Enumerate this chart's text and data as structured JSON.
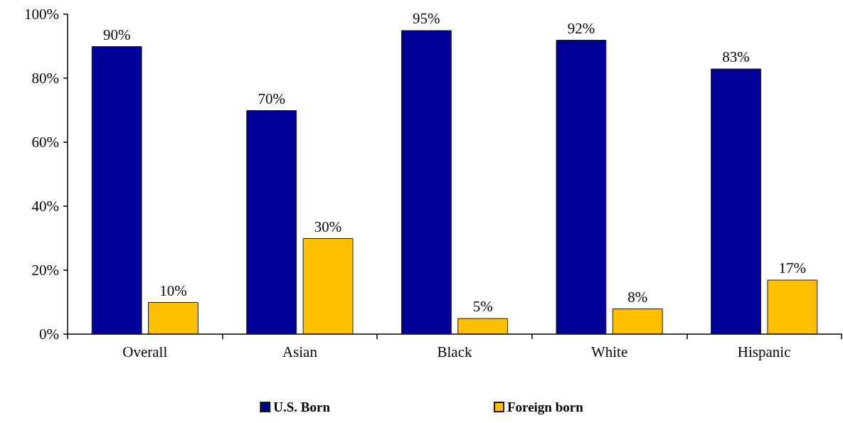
{
  "chart_data": {
    "type": "bar",
    "categories": [
      "Overall",
      "Asian",
      "Black",
      "White",
      "Hispanic"
    ],
    "series": [
      {
        "name": "U.S. Born",
        "color": "#000099",
        "values": [
          90,
          70,
          95,
          92,
          83
        ],
        "value_labels": [
          "90%",
          "70%",
          "95%",
          "92%",
          "83%"
        ]
      },
      {
        "name": "Foreign born",
        "color": "#ffc000",
        "values": [
          10,
          30,
          5,
          8,
          17
        ],
        "value_labels": [
          "10%",
          "30%",
          "5%",
          "8%",
          "17%"
        ]
      }
    ],
    "ylim": [
      0,
      100
    ],
    "yticks": [
      {
        "value": 0,
        "label": "0%"
      },
      {
        "value": 20,
        "label": "20%"
      },
      {
        "value": 40,
        "label": "40%"
      },
      {
        "value": 60,
        "label": "60%"
      },
      {
        "value": 80,
        "label": "80%"
      },
      {
        "value": 100,
        "label": "100%"
      }
    ],
    "legend": "bottom"
  }
}
